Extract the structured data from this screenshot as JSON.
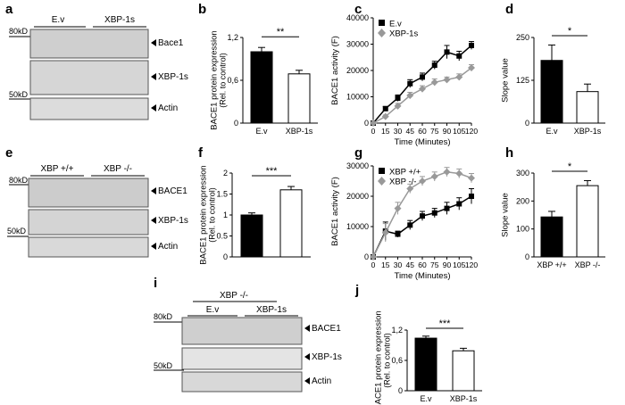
{
  "panels": {
    "a": "a",
    "b": "b",
    "c": "c",
    "d": "d",
    "e": "e",
    "f": "f",
    "g": "g",
    "h": "h",
    "i": "i",
    "j": "j"
  },
  "blots": [
    {
      "id": "a",
      "groups": [
        "E.v",
        "XBP-1s"
      ],
      "header": "",
      "markers": [
        "80kD",
        "50kD"
      ],
      "bands": [
        "Bace1",
        "XBP-1s",
        "Actin"
      ]
    },
    {
      "id": "e",
      "groups": [
        "XBP +/+",
        "XBP -/-"
      ],
      "header": "",
      "markers": [
        "80kD",
        "50kD"
      ],
      "bands": [
        "BACE1",
        "XBP-1s",
        "Actin"
      ]
    },
    {
      "id": "i",
      "groups": [
        "E.v",
        "XBP-1s"
      ],
      "header": "XBP -/-",
      "markers": [
        "80kD",
        "50kD"
      ],
      "bands": [
        "BACE1",
        "XBP-1s",
        "Actin"
      ]
    }
  ],
  "chart_data": [
    {
      "id": "b",
      "type": "bar",
      "ylabel": "BACE1 protein expression",
      "ylabel2": "(Rel. to control)",
      "ylim": [
        0,
        1.2
      ],
      "yticks": [
        "0",
        "0,6",
        "1,2"
      ],
      "ytick_values": [
        0,
        0.6,
        1.2
      ],
      "categories": [
        "E.v",
        "XBP-1s"
      ],
      "values": [
        1.0,
        0.69
      ],
      "errors": [
        0.06,
        0.05
      ],
      "colors": [
        "#000000",
        "#ffffff"
      ],
      "significance": "**"
    },
    {
      "id": "c",
      "type": "line",
      "ylabel": "BACE1 activity (F)",
      "xlabel": "Time (Minutes)",
      "ylim": [
        0,
        40000
      ],
      "yticks": [
        "0",
        "10000",
        "20000",
        "30000",
        "40000"
      ],
      "ytick_values": [
        0,
        10000,
        20000,
        30000,
        40000
      ],
      "x": [
        0,
        15,
        30,
        45,
        60,
        75,
        90,
        105,
        120
      ],
      "xticks": [
        "0",
        "15",
        "30",
        "45",
        "60",
        "75",
        "90",
        "105",
        "120"
      ],
      "legend_position": "top-left",
      "series": [
        {
          "name": "E.v",
          "color": "#000000",
          "marker": "square",
          "values": [
            0,
            5500,
            9500,
            15000,
            17500,
            22000,
            27000,
            25500,
            29500
          ],
          "errors": [
            300,
            800,
            1200,
            1500,
            1500,
            1500,
            2500,
            1800,
            1500
          ]
        },
        {
          "name": "XBP-1s",
          "color": "#999999",
          "marker": "diamond",
          "values": [
            0,
            2500,
            6500,
            10500,
            13000,
            15500,
            16500,
            17500,
            21000
          ],
          "errors": [
            300,
            600,
            1000,
            1200,
            1200,
            1300,
            1000,
            1200,
            1200
          ]
        }
      ]
    },
    {
      "id": "d",
      "type": "bar",
      "ylabel": "Slope value",
      "ylim": [
        0,
        250
      ],
      "yticks": [
        "0",
        "125",
        "250"
      ],
      "ytick_values": [
        0,
        125,
        250
      ],
      "categories": [
        "E.v",
        "XBP-1s"
      ],
      "values": [
        183,
        92
      ],
      "errors": [
        45,
        22
      ],
      "colors": [
        "#000000",
        "#ffffff"
      ],
      "significance": "*"
    },
    {
      "id": "f",
      "type": "bar",
      "ylabel": "BACE1 protein expression",
      "ylabel2": "(Rel. to control)",
      "ylim": [
        0,
        2
      ],
      "yticks": [
        "0",
        "0.5",
        "1",
        "1.5",
        "2"
      ],
      "ytick_values": [
        0,
        0.5,
        1,
        1.5,
        2
      ],
      "categories": [
        "",
        ""
      ],
      "values": [
        1.0,
        1.6
      ],
      "errors": [
        0.05,
        0.08
      ],
      "colors": [
        "#000000",
        "#ffffff"
      ],
      "significance": "***"
    },
    {
      "id": "g",
      "type": "line",
      "ylabel": "BACE1 activity (F)",
      "xlabel": "Time (Minutes)",
      "ylim": [
        0,
        30000
      ],
      "yticks": [
        "0",
        "10000",
        "20000",
        "30000"
      ],
      "ytick_values": [
        0,
        10000,
        20000,
        30000
      ],
      "x": [
        0,
        15,
        30,
        45,
        60,
        75,
        90,
        105,
        120
      ],
      "xticks": [
        "0",
        "15",
        "30",
        "45",
        "60",
        "75",
        "90",
        "105",
        "120"
      ],
      "legend_position": "top-left",
      "series": [
        {
          "name": "XBP +/+",
          "color": "#000000",
          "marker": "square",
          "values": [
            0,
            8500,
            7500,
            10500,
            13500,
            14500,
            16000,
            17500,
            20000
          ],
          "errors": [
            300,
            3000,
            1000,
            1500,
            1500,
            1500,
            2000,
            2000,
            2500
          ]
        },
        {
          "name": "XBP -/-",
          "color": "#999999",
          "marker": "diamond",
          "values": [
            0,
            8000,
            16000,
            22500,
            25000,
            26500,
            28000,
            27500,
            26000
          ],
          "errors": [
            300,
            3000,
            2000,
            1500,
            1500,
            1500,
            1500,
            1500,
            1500
          ]
        }
      ]
    },
    {
      "id": "h",
      "type": "bar",
      "ylabel": "Slope value",
      "ylim": [
        0,
        300
      ],
      "yticks": [
        "0",
        "100",
        "200",
        "300"
      ],
      "ytick_values": [
        0,
        100,
        200,
        300
      ],
      "categories": [
        "XBP +/+",
        "XBP -/-"
      ],
      "values": [
        143,
        255
      ],
      "errors": [
        20,
        18
      ],
      "colors": [
        "#000000",
        "#ffffff"
      ],
      "significance": "*"
    },
    {
      "id": "j",
      "type": "bar",
      "ylabel": "BACE1 protein expression",
      "ylabel2": "(Rel. to control)",
      "ylim": [
        0,
        1.2
      ],
      "yticks": [
        "0",
        "0,6",
        "1,2"
      ],
      "ytick_values": [
        0,
        0.6,
        1.2
      ],
      "categories": [
        "E.v",
        "XBP-1s"
      ],
      "values": [
        1.04,
        0.79
      ],
      "errors": [
        0.04,
        0.05
      ],
      "colors": [
        "#000000",
        "#ffffff"
      ],
      "significance": "***"
    }
  ]
}
